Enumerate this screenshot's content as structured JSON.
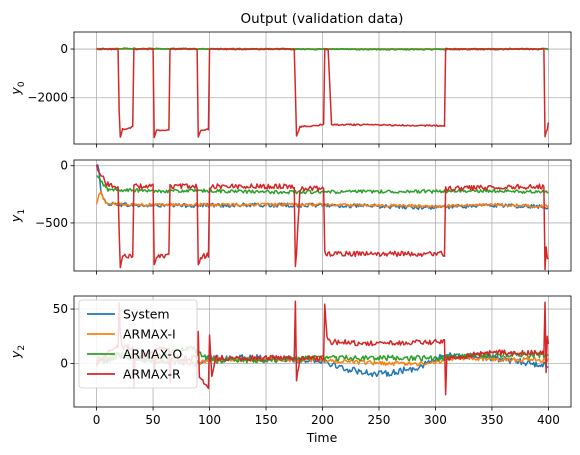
{
  "chart_data": {
    "type": "line",
    "title": "Output (validation data)",
    "xlabel": "Time",
    "grid": true,
    "legend_placement": "upper-left (bottom panel)",
    "series_names": [
      "System",
      "ARMAX-I",
      "ARMAX-O",
      "ARMAX-R"
    ],
    "colors": {
      "System": "#1f77b4",
      "ARMAX-I": "#ff7f0e",
      "ARMAX-O": "#2ca02c",
      "ARMAX-R": "#d62728"
    },
    "x_range": [
      0,
      400
    ],
    "x_ticks": [
      "0",
      "50",
      "100",
      "150",
      "200",
      "250",
      "300",
      "350",
      "400"
    ],
    "events_R_spikes": [
      20,
      33,
      51,
      65,
      90,
      100,
      176,
      202,
      309,
      400
    ],
    "panels": [
      {
        "ylabel_main": "y",
        "ylabel_sub": "0",
        "ylim": [
          -3900,
          700
        ],
        "yticks": [
          0,
          -2000
        ],
        "ytick_labels": [
          "0",
          "−2000"
        ],
        "series": {
          "System": {
            "base": 0,
            "noise": 0
          },
          "ARMAX-I": {
            "base": 0,
            "noise": 0
          },
          "ARMAX-O": {
            "points": [
              [
                0,
                0
              ],
              [
                10,
                0
              ],
              [
                20,
                15
              ],
              [
                30,
                20
              ],
              [
                50,
                20
              ],
              [
                80,
                10
              ],
              [
                100,
                5
              ],
              [
                150,
                0
              ],
              [
                200,
                -5
              ],
              [
                250,
                -20
              ],
              [
                300,
                -15
              ],
              [
                350,
                -5
              ],
              [
                400,
                5
              ]
            ],
            "noise": 25
          },
          "ARMAX-R": {
            "points": [
              [
                0,
                0
              ],
              [
                19,
                0
              ],
              [
                20,
                -2600
              ],
              [
                21,
                -3600
              ],
              [
                23,
                -3300
              ],
              [
                32,
                -3200
              ],
              [
                33,
                0
              ],
              [
                36,
                0
              ],
              [
                50,
                0
              ],
              [
                51,
                -3600
              ],
              [
                53,
                -3350
              ],
              [
                64,
                -3300
              ],
              [
                65,
                0
              ],
              [
                68,
                0
              ],
              [
                89,
                0
              ],
              [
                90,
                -3600
              ],
              [
                92,
                -3350
              ],
              [
                99,
                -3300
              ],
              [
                100,
                0
              ],
              [
                103,
                0
              ],
              [
                175,
                0
              ],
              [
                176,
                -1700
              ],
              [
                177,
                -3600
              ],
              [
                180,
                -3200
              ],
              [
                201,
                -3100
              ],
              [
                202,
                0
              ],
              [
                205,
                0
              ],
              [
                208,
                -3100
              ],
              [
                308,
                -3150
              ],
              [
                309,
                0
              ],
              [
                312,
                0
              ],
              [
                396,
                0
              ],
              [
                397,
                -3600
              ],
              [
                398,
                -3400
              ],
              [
                399,
                -3300
              ],
              [
                400,
                -3000
              ]
            ],
            "noise": 30
          }
        }
      },
      {
        "ylabel_main": "y",
        "ylabel_sub": "1",
        "ylim": [
          -920,
          50
        ],
        "yticks": [
          0,
          -500
        ],
        "ytick_labels": [
          "0",
          "−500"
        ],
        "series": {
          "System": {
            "points": [
              [
                0,
                0
              ],
              [
                2,
                -20
              ],
              [
                4,
                -230
              ],
              [
                8,
                -330
              ],
              [
                40,
                -350
              ],
              [
                100,
                -345
              ],
              [
                150,
                -345
              ],
              [
                200,
                -345
              ],
              [
                250,
                -355
              ],
              [
                300,
                -365
              ],
              [
                350,
                -345
              ],
              [
                400,
                -360
              ]
            ],
            "noise": 18
          },
          "ARMAX-I": {
            "points": [
              [
                0,
                -340
              ],
              [
                2,
                -250
              ],
              [
                4,
                -230
              ],
              [
                8,
                -330
              ],
              [
                40,
                -340
              ],
              [
                100,
                -340
              ],
              [
                150,
                -340
              ],
              [
                200,
                -340
              ],
              [
                250,
                -345
              ],
              [
                300,
                -355
              ],
              [
                350,
                -340
              ],
              [
                400,
                -355
              ]
            ],
            "noise": 12
          },
          "ARMAX-O": {
            "points": [
              [
                0,
                -90
              ],
              [
                5,
                -150
              ],
              [
                10,
                -210
              ],
              [
                50,
                -220
              ],
              [
                100,
                -220
              ],
              [
                150,
                -230
              ],
              [
                200,
                -230
              ],
              [
                250,
                -225
              ],
              [
                300,
                -225
              ],
              [
                350,
                -220
              ],
              [
                400,
                -230
              ]
            ],
            "noise": 15
          },
          "ARMAX-R": {
            "points": [
              [
                0,
                0
              ],
              [
                8,
                -150
              ],
              [
                15,
                -180
              ],
              [
                19,
                -190
              ],
              [
                20,
                -600
              ],
              [
                21,
                -870
              ],
              [
                23,
                -800
              ],
              [
                32,
                -780
              ],
              [
                33,
                -180
              ],
              [
                50,
                -180
              ],
              [
                51,
                -880
              ],
              [
                53,
                -800
              ],
              [
                64,
                -780
              ],
              [
                65,
                -180
              ],
              [
                89,
                -180
              ],
              [
                90,
                -880
              ],
              [
                92,
                -800
              ],
              [
                99,
                -780
              ],
              [
                100,
                -180
              ],
              [
                175,
                -180
              ],
              [
                176,
                -860
              ],
              [
                177,
                -750
              ],
              [
                180,
                -200
              ],
              [
                201,
                -200
              ],
              [
                202,
                -760
              ],
              [
                205,
                -770
              ],
              [
                308,
                -770
              ],
              [
                309,
                -200
              ],
              [
                396,
                -180
              ],
              [
                397,
                -890
              ],
              [
                398,
                -720
              ],
              [
                399,
                -800
              ],
              [
                400,
                -800
              ]
            ],
            "noise": 22
          }
        }
      },
      {
        "ylabel_main": "y",
        "ylabel_sub": "2",
        "ylim": [
          -40,
          62
        ],
        "yticks": [
          0,
          50
        ],
        "ytick_labels": [
          "0",
          "50"
        ],
        "series": {
          "System": {
            "points": [
              [
                0,
                5
              ],
              [
                10,
                3
              ],
              [
                20,
                8
              ],
              [
                50,
                2
              ],
              [
                90,
                0
              ],
              [
                100,
                5
              ],
              [
                150,
                5
              ],
              [
                200,
                3
              ],
              [
                220,
                -5
              ],
              [
                250,
                -10
              ],
              [
                280,
                -5
              ],
              [
                310,
                8
              ],
              [
                350,
                5
              ],
              [
                400,
                -2
              ]
            ],
            "noise": 3
          },
          "ARMAX-I": {
            "points": [
              [
                0,
                5
              ],
              [
                20,
                8
              ],
              [
                50,
                4
              ],
              [
                90,
                0
              ],
              [
                100,
                4
              ],
              [
                150,
                4
              ],
              [
                200,
                3
              ],
              [
                250,
                0
              ],
              [
                300,
                0
              ],
              [
                310,
                5
              ],
              [
                350,
                4
              ],
              [
                400,
                3
              ]
            ],
            "noise": 2
          },
          "ARMAX-O": {
            "points": [
              [
                0,
                0
              ],
              [
                20,
                8
              ],
              [
                50,
                5
              ],
              [
                85,
                15
              ],
              [
                90,
                10
              ],
              [
                100,
                3
              ],
              [
                150,
                3
              ],
              [
                200,
                5
              ],
              [
                250,
                5
              ],
              [
                300,
                5
              ],
              [
                350,
                8
              ],
              [
                400,
                8
              ]
            ],
            "noise": 2.5
          },
          "ARMAX-R": {
            "points": [
              [
                0,
                0
              ],
              [
                10,
                10
              ],
              [
                19,
                15
              ],
              [
                20,
                58
              ],
              [
                21,
                25
              ],
              [
                23,
                15
              ],
              [
                32,
                15
              ],
              [
                33,
                -20
              ],
              [
                34,
                5
              ],
              [
                50,
                10
              ],
              [
                51,
                -10
              ],
              [
                53,
                15
              ],
              [
                64,
                15
              ],
              [
                65,
                -15
              ],
              [
                66,
                5
              ],
              [
                89,
                5
              ],
              [
                90,
                30
              ],
              [
                91,
                -12
              ],
              [
                99,
                -25
              ],
              [
                100,
                25
              ],
              [
                102,
                -10
              ],
              [
                105,
                5
              ],
              [
                150,
                5
              ],
              [
                175,
                5
              ],
              [
                176,
                55
              ],
              [
                177,
                -15
              ],
              [
                180,
                5
              ],
              [
                201,
                5
              ],
              [
                202,
                55
              ],
              [
                204,
                25
              ],
              [
                206,
                20
              ],
              [
                250,
                18
              ],
              [
                308,
                20
              ],
              [
                309,
                -30
              ],
              [
                310,
                5
              ],
              [
                350,
                10
              ],
              [
                396,
                10
              ],
              [
                397,
                55
              ],
              [
                398,
                -10
              ],
              [
                399,
                25
              ],
              [
                400,
                20
              ]
            ],
            "noise": 2.5
          }
        }
      }
    ]
  }
}
